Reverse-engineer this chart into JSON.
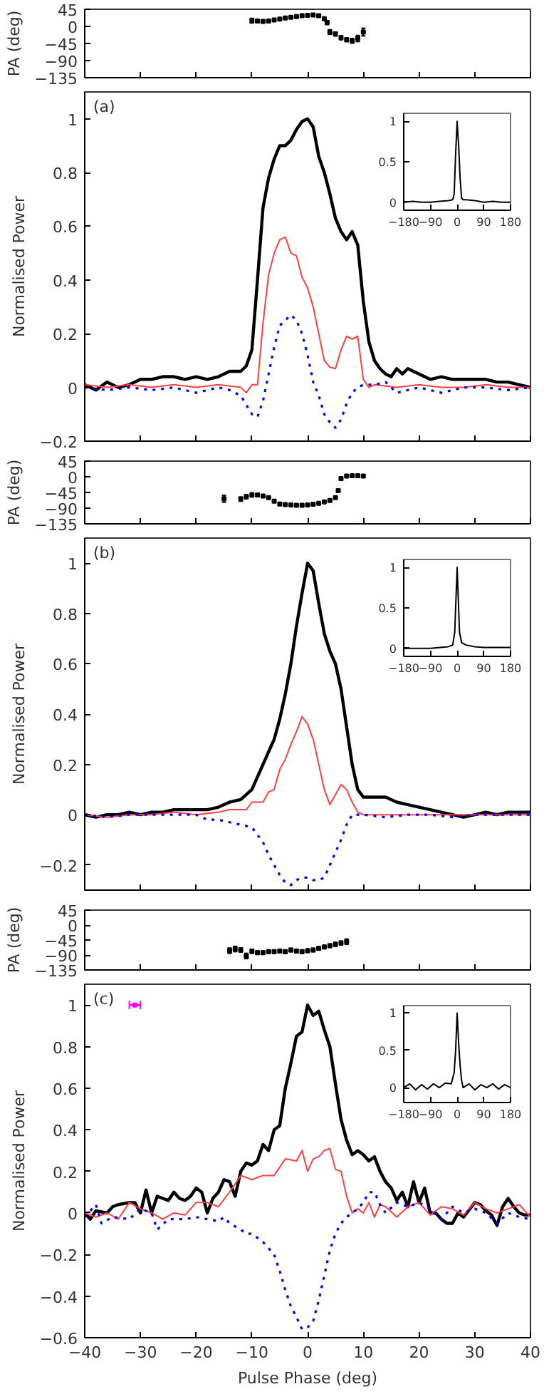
{
  "chart_data": [
    {
      "type": "scatter",
      "ylabel": "PA (deg)",
      "xlim": [
        -40,
        40
      ],
      "xticks": [
        -40,
        -30,
        -20,
        -10,
        0,
        10,
        20,
        30,
        40
      ],
      "ylim": [
        -135,
        45
      ],
      "yticks": [
        -135,
        -90,
        -45,
        0,
        45
      ],
      "tick_labels": "y",
      "marker": "square",
      "grid": false,
      "series": [
        {
          "color": "#000000",
          "x": [
            -10,
            -9,
            -8,
            -7,
            -6,
            -5,
            -4,
            -3,
            -2,
            -1,
            0,
            1,
            2,
            3,
            3.5,
            4,
            5,
            6,
            7,
            8,
            9,
            10
          ],
          "values": [
            15,
            14,
            13,
            14,
            17,
            19,
            22,
            24,
            26,
            28,
            29,
            30,
            28,
            20,
            10,
            -15,
            -20,
            -30,
            -35,
            -38,
            -32,
            -15
          ],
          "errors": [
            6,
            4,
            4,
            3,
            3,
            3,
            3,
            3,
            3,
            3,
            3,
            3,
            3,
            4,
            5,
            6,
            5,
            5,
            5,
            6,
            8,
            10
          ]
        }
      ]
    },
    {
      "type": "line",
      "ylabel": "Normalised Power",
      "annotations": [
        "(a)"
      ],
      "xlim": [
        -40,
        40
      ],
      "xticks": [
        -40,
        -30,
        -20,
        -10,
        0,
        10,
        20,
        30,
        40
      ],
      "ylim": [
        -0.2,
        1.1
      ],
      "yticks": [
        -0.2,
        0,
        0.2,
        0.4,
        0.6,
        0.8,
        1
      ],
      "tick_labels": "y",
      "line_style": "solid",
      "grid": false,
      "series": [
        {
          "color": "#000000",
          "x": [
            -40,
            -38,
            -36,
            -34,
            -32,
            -30,
            -28,
            -26,
            -24,
            -22,
            -20,
            -18,
            -16,
            -14,
            -12,
            -11,
            -10,
            -9,
            -8,
            -7,
            -6,
            -5,
            -4,
            -3,
            -2,
            -1,
            0,
            1,
            2,
            3,
            4,
            5,
            6,
            7,
            8,
            9,
            10,
            11,
            12,
            13,
            14,
            15,
            16,
            17,
            18,
            19,
            20,
            22,
            24,
            26,
            28,
            30,
            32,
            34,
            36,
            38,
            40
          ],
          "values": [
            0.01,
            -0.01,
            0.02,
            0,
            0.01,
            0.03,
            0.03,
            0.04,
            0.04,
            0.03,
            0.04,
            0.03,
            0.04,
            0.06,
            0.06,
            0.08,
            0.14,
            0.4,
            0.67,
            0.78,
            0.85,
            0.9,
            0.9,
            0.92,
            0.96,
            0.99,
            1,
            0.97,
            0.86,
            0.8,
            0.72,
            0.63,
            0.58,
            0.55,
            0.58,
            0.53,
            0.32,
            0.17,
            0.1,
            0.07,
            0.05,
            0.04,
            0.07,
            0.05,
            0.07,
            0.06,
            0.05,
            0.03,
            0.04,
            0.03,
            0.03,
            0.03,
            0.03,
            0.02,
            0.02,
            0.01,
            0
          ]
        },
        {
          "color": "#ff4040",
          "x": [
            -40,
            -36,
            -32,
            -28,
            -24,
            -20,
            -16,
            -12,
            -11,
            -10,
            -9,
            -8,
            -7,
            -6,
            -5,
            -4,
            -3,
            -2,
            -1,
            0,
            1,
            2,
            3,
            4,
            5,
            6,
            7,
            8,
            9,
            10,
            11,
            12,
            16,
            20,
            24,
            28,
            32,
            36,
            40
          ],
          "values": [
            0.01,
            0,
            0.01,
            0,
            0.01,
            0,
            0.01,
            0,
            -0.02,
            0.01,
            0.01,
            0.24,
            0.42,
            0.5,
            0.55,
            0.56,
            0.5,
            0.49,
            0.41,
            0.37,
            0.3,
            0.2,
            0.1,
            0.075,
            0.07,
            0.14,
            0.19,
            0.18,
            0.19,
            0.03,
            0,
            0.01,
            0,
            0.01,
            0,
            0,
            0.01,
            0,
            0
          ]
        },
        {
          "color": "#0000ff",
          "line_style": "dotted",
          "x": [
            -40,
            -36,
            -32,
            -28,
            -24,
            -20,
            -16,
            -14,
            -12,
            -10,
            -9,
            -8,
            -7,
            -6,
            -5,
            -4,
            -3,
            -2,
            -1,
            0,
            1,
            2,
            3,
            4,
            5,
            6,
            7,
            8,
            9,
            10,
            12,
            14,
            16,
            20,
            24,
            28,
            32,
            36,
            40
          ],
          "values": [
            0,
            -0.01,
            0,
            -0.01,
            0,
            -0.02,
            0,
            -0.01,
            -0.03,
            -0.1,
            -0.11,
            -0.05,
            0.05,
            0.15,
            0.23,
            0.25,
            0.27,
            0.25,
            0.2,
            0.12,
            0.02,
            -0.03,
            -0.1,
            -0.13,
            -0.15,
            -0.12,
            -0.06,
            -0.02,
            0,
            0.01,
            0.01,
            0.02,
            -0.02,
            0,
            -0.02,
            0,
            0,
            -0.01,
            0
          ]
        }
      ]
    },
    {
      "type": "line",
      "xlim": [
        -180,
        180
      ],
      "xticks": [
        -180,
        -90,
        0,
        90,
        180
      ],
      "ylim": [
        -0.1,
        1.1
      ],
      "yticks": [
        0,
        0.5,
        1
      ],
      "grid": false,
      "series": [
        {
          "color": "#000000",
          "x": [
            -180,
            -150,
            -120,
            -90,
            -60,
            -30,
            -15,
            -10,
            -5,
            0,
            5,
            10,
            15,
            20,
            30,
            60,
            90,
            120,
            150,
            180
          ],
          "values": [
            0,
            0.01,
            0,
            0,
            0.01,
            0.02,
            0.03,
            0.1,
            0.6,
            1,
            0.7,
            0.3,
            0.05,
            0.03,
            0.03,
            0.02,
            0,
            0.01,
            0,
            0
          ]
        }
      ]
    },
    {
      "type": "scatter",
      "ylabel": "PA (deg)",
      "xlim": [
        -40,
        40
      ],
      "xticks": [
        -40,
        -30,
        -20,
        -10,
        0,
        10,
        20,
        30,
        40
      ],
      "ylim": [
        -135,
        45
      ],
      "yticks": [
        -135,
        -90,
        -45,
        0,
        45
      ],
      "tick_labels": "y",
      "marker": "square",
      "grid": false,
      "series": [
        {
          "color": "#000000",
          "x": [
            -15,
            -12,
            -11,
            -10,
            -9,
            -8,
            -7,
            -6,
            -5,
            -4,
            -3,
            -2,
            -1,
            0,
            1,
            2,
            3,
            4,
            5,
            5.5,
            6,
            7,
            8,
            9,
            10
          ],
          "values": [
            -63,
            -64,
            -57,
            -52,
            -52,
            -55,
            -60,
            -70,
            -78,
            -80,
            -81,
            -82,
            -82,
            -81,
            -79,
            -76,
            -72,
            -68,
            -60,
            -40,
            -5,
            2,
            3,
            3,
            2
          ],
          "errors": [
            10,
            6,
            6,
            6,
            4,
            4,
            3,
            3,
            3,
            3,
            2,
            2,
            2,
            2,
            2,
            2,
            3,
            3,
            4,
            4,
            4,
            3,
            3,
            3,
            4
          ]
        }
      ]
    },
    {
      "type": "line",
      "ylabel": "Normalised Power",
      "annotations": [
        "(b)"
      ],
      "xlim": [
        -40,
        40
      ],
      "xticks": [
        -40,
        -30,
        -20,
        -10,
        0,
        10,
        20,
        30,
        40
      ],
      "ylim": [
        -0.3,
        1.1
      ],
      "yticks": [
        -0.2,
        0,
        0.2,
        0.4,
        0.6,
        0.8,
        1
      ],
      "tick_labels": "y",
      "line_style": "solid",
      "grid": false,
      "series": [
        {
          "color": "#000000",
          "x": [
            -40,
            -38,
            -36,
            -34,
            -32,
            -30,
            -28,
            -26,
            -24,
            -22,
            -20,
            -18,
            -16,
            -14,
            -12,
            -10,
            -9,
            -8,
            -7,
            -6,
            -5,
            -4,
            -3,
            -2,
            -1,
            0,
            1,
            2,
            3,
            4,
            5,
            6,
            7,
            8,
            9,
            10,
            12,
            14,
            16,
            18,
            20,
            22,
            24,
            26,
            28,
            30,
            32,
            34,
            36,
            38,
            40
          ],
          "values": [
            0,
            -0.01,
            0,
            0,
            0.01,
            0,
            0.01,
            0.01,
            0.02,
            0.02,
            0.02,
            0.02,
            0.03,
            0.05,
            0.06,
            0.1,
            0.15,
            0.2,
            0.25,
            0.3,
            0.38,
            0.48,
            0.6,
            0.75,
            0.88,
            1,
            0.97,
            0.84,
            0.72,
            0.65,
            0.6,
            0.5,
            0.35,
            0.2,
            0.1,
            0.07,
            0.07,
            0.07,
            0.05,
            0.04,
            0.03,
            0.02,
            0.01,
            0,
            -0.01,
            0,
            0.01,
            0,
            0.01,
            0.01,
            0.01
          ]
        },
        {
          "color": "#ff4040",
          "x": [
            -40,
            -36,
            -32,
            -28,
            -24,
            -20,
            -16,
            -14,
            -12,
            -11,
            -10,
            -8,
            -7,
            -6,
            -5,
            -4,
            -3,
            -2,
            -1,
            0,
            1,
            2,
            3,
            4,
            5,
            6,
            7,
            8,
            9,
            10,
            14,
            18,
            22,
            26,
            30,
            34,
            38,
            40
          ],
          "values": [
            0,
            -0.01,
            0,
            0,
            0.01,
            0,
            0.01,
            0.02,
            0.02,
            0.02,
            0.05,
            0.05,
            0.09,
            0.1,
            0.18,
            0.22,
            0.28,
            0.33,
            0.39,
            0.36,
            0.3,
            0.2,
            0.1,
            0.04,
            0.08,
            0.12,
            0.1,
            0.05,
            0.01,
            0,
            0,
            0,
            0,
            0,
            0,
            0,
            0,
            0
          ]
        },
        {
          "color": "#0000ff",
          "line_style": "dotted",
          "x": [
            -40,
            -36,
            -32,
            -28,
            -24,
            -20,
            -18,
            -16,
            -14,
            -12,
            -10,
            -9,
            -8,
            -7,
            -6,
            -5,
            -4,
            -3,
            -2,
            -1,
            0,
            1,
            2,
            3,
            4,
            5,
            6,
            7,
            8,
            10,
            14,
            18,
            22,
            26,
            30,
            34,
            38,
            40
          ],
          "values": [
            0,
            -0.01,
            0,
            0,
            0,
            0,
            -0.02,
            -0.02,
            -0.03,
            -0.04,
            -0.05,
            -0.08,
            -0.11,
            -0.16,
            -0.2,
            -0.24,
            -0.27,
            -0.28,
            -0.26,
            -0.25,
            -0.25,
            -0.26,
            -0.26,
            -0.25,
            -0.2,
            -0.15,
            -0.1,
            -0.04,
            0,
            0,
            -0.01,
            0,
            0,
            -0.01,
            0,
            0,
            0,
            0
          ]
        }
      ]
    },
    {
      "type": "line",
      "xlim": [
        -180,
        180
      ],
      "xticks": [
        -180,
        -90,
        0,
        90,
        180
      ],
      "ylim": [
        -0.1,
        1.1
      ],
      "yticks": [
        0,
        0.5,
        1
      ],
      "grid": false,
      "series": [
        {
          "color": "#000000",
          "x": [
            -180,
            -90,
            -30,
            -15,
            -8,
            -4,
            0,
            4,
            8,
            15,
            30,
            60,
            90,
            180
          ],
          "values": [
            0,
            0,
            0.02,
            0.04,
            0.2,
            0.6,
            1,
            0.6,
            0.2,
            0.07,
            0.04,
            0.02,
            0.01,
            0.01
          ]
        }
      ]
    },
    {
      "type": "scatter",
      "ylabel": "PA (deg)",
      "xlim": [
        -40,
        40
      ],
      "xticks": [
        -40,
        -30,
        -20,
        -10,
        0,
        10,
        20,
        30,
        40
      ],
      "ylim": [
        -135,
        45
      ],
      "yticks": [
        -135,
        -90,
        -45,
        0,
        45
      ],
      "tick_labels": "y",
      "marker": "square",
      "grid": false,
      "series": [
        {
          "color": "#000000",
          "x": [
            -14,
            -13,
            -12,
            -11,
            -10,
            -9,
            -8,
            -7,
            -6,
            -5,
            -4,
            -3,
            -2,
            -1,
            0,
            1,
            2,
            3,
            4,
            5,
            6,
            7
          ],
          "values": [
            -77,
            -72,
            -75,
            -93,
            -79,
            -83,
            -83,
            -80,
            -80,
            -78,
            -80,
            -75,
            -78,
            -80,
            -77,
            -75,
            -70,
            -66,
            -62,
            -58,
            -54,
            -50
          ],
          "errors": [
            8,
            8,
            6,
            8,
            6,
            5,
            5,
            5,
            5,
            5,
            5,
            5,
            5,
            5,
            5,
            5,
            5,
            5,
            5,
            6,
            6,
            8
          ]
        }
      ]
    },
    {
      "type": "line",
      "ylabel": "Normalised Power",
      "xlabel": "Pulse Phase (deg)",
      "annotations": [
        "(c)"
      ],
      "xlim": [
        -40,
        40
      ],
      "xticks": [
        -40,
        -30,
        -20,
        -10,
        0,
        10,
        20,
        30,
        40
      ],
      "ylim": [
        -0.6,
        1.1
      ],
      "yticks": [
        -0.6,
        -0.4,
        -0.2,
        0,
        0.2,
        0.4,
        0.6,
        0.8,
        1
      ],
      "line_style": "solid",
      "grid": false,
      "series": [
        {
          "color": "#000000",
          "x": [
            -40,
            -39,
            -38,
            -36,
            -35,
            -34,
            -32,
            -31,
            -30,
            -29,
            -28,
            -27,
            -26,
            -25,
            -24,
            -23,
            -22,
            -21,
            -20,
            -19,
            -18,
            -17,
            -16,
            -15,
            -14,
            -13,
            -12,
            -11,
            -10,
            -9,
            -8,
            -7,
            -6,
            -5,
            -4,
            -3,
            -2,
            -1,
            0,
            1,
            2,
            3,
            4,
            5,
            6,
            7,
            8,
            9,
            10,
            11,
            12,
            13,
            14,
            15,
            16,
            17,
            18,
            19,
            20,
            21,
            22,
            23,
            24,
            25,
            26,
            27,
            28,
            30,
            31,
            32,
            33,
            34,
            35,
            36,
            37,
            38,
            39,
            40
          ],
          "values": [
            0,
            -0.03,
            0.01,
            0,
            0.03,
            0.04,
            0.05,
            0.05,
            0,
            0.11,
            0,
            0.08,
            0.07,
            0.06,
            0.1,
            0.07,
            0.06,
            0.08,
            0.12,
            0.1,
            0,
            0.07,
            0.1,
            0.16,
            0.15,
            0.08,
            0.2,
            0.24,
            0.23,
            0.25,
            0.33,
            0.3,
            0.4,
            0.42,
            0.6,
            0.72,
            0.85,
            0.87,
            1,
            0.95,
            0.97,
            0.88,
            0.8,
            0.62,
            0.45,
            0.35,
            0.28,
            0.3,
            0.28,
            0.25,
            0.27,
            0.2,
            0.15,
            0.12,
            0.06,
            0.1,
            0.03,
            0.15,
            0.05,
            0.12,
            0,
            0,
            -0.03,
            -0.05,
            -0.05,
            0,
            -0.02,
            0.05,
            0.04,
            0.01,
            -0.01,
            -0.06,
            0.03,
            0.07,
            0.03,
            0,
            -0.01,
            -0.01
          ]
        },
        {
          "color": "#ff4040",
          "x": [
            -40,
            -38,
            -36,
            -34,
            -32,
            -30,
            -28,
            -26,
            -24,
            -22,
            -20,
            -18,
            -16,
            -14,
            -12,
            -10,
            -8,
            -6,
            -4,
            -2,
            -1,
            0,
            1,
            2,
            3,
            4,
            5,
            6,
            7,
            8,
            9,
            10,
            11,
            12,
            13,
            14,
            16,
            18,
            20,
            22,
            24,
            26,
            28,
            30,
            32,
            34,
            36,
            38,
            40
          ],
          "values": [
            0,
            -0.02,
            0,
            -0.03,
            0.05,
            0.02,
            0,
            -0.03,
            0,
            -0.01,
            0.05,
            0.05,
            0.03,
            0.1,
            0.18,
            0.16,
            0.18,
            0.18,
            0.26,
            0.25,
            0.3,
            0.2,
            0.26,
            0.27,
            0.3,
            0.31,
            0.21,
            0.2,
            0.08,
            0,
            0.02,
            0,
            0.05,
            -0.02,
            0.04,
            0.03,
            -0.02,
            0.03,
            0.05,
            -0.01,
            0.03,
            0.02,
            -0.01,
            0.05,
            0.02,
            0,
            0.02,
            0.04,
            -0.02
          ]
        },
        {
          "color": "#0000ff",
          "line_style": "dotted",
          "x": [
            -40,
            -38,
            -37,
            -35,
            -32,
            -30,
            -28,
            -27,
            -25,
            -22,
            -20,
            -18,
            -16,
            -15,
            -14,
            -12,
            -11,
            -10,
            -8,
            -6,
            -5,
            -4,
            -3,
            -2,
            -1,
            0,
            1,
            2,
            3,
            4,
            5,
            6,
            7,
            9,
            10,
            11,
            12,
            13,
            14,
            16,
            18,
            20,
            22,
            24,
            26,
            28,
            30,
            32,
            34,
            36,
            38,
            40
          ],
          "values": [
            -0.02,
            0.04,
            -0.05,
            -0.02,
            -0.03,
            0.02,
            0,
            -0.08,
            -0.03,
            -0.03,
            -0.02,
            -0.03,
            -0.04,
            -0.02,
            -0.05,
            -0.08,
            -0.1,
            -0.1,
            -0.14,
            -0.2,
            -0.28,
            -0.37,
            -0.45,
            -0.5,
            -0.56,
            -0.55,
            -0.52,
            -0.42,
            -0.3,
            -0.18,
            -0.1,
            -0.05,
            -0.02,
            0.02,
            0.05,
            0.1,
            0.1,
            0.04,
            0,
            0.05,
            0.03,
            0.05,
            0.02,
            -0.03,
            0.03,
            0,
            0.02,
            0,
            -0.05,
            0,
            -0.02,
            -0.03
          ]
        },
        {
          "type": "scatter",
          "color": "#ff00ff",
          "marker": "square",
          "x": [
            -31
          ],
          "values": [
            1
          ],
          "xerrors": [
            1
          ]
        }
      ]
    },
    {
      "type": "line",
      "xlim": [
        -180,
        180
      ],
      "xticks": [
        -180,
        -90,
        0,
        90,
        180
      ],
      "ylim": [
        -0.2,
        1.1
      ],
      "yticks": [
        0,
        0.5,
        1
      ],
      "grid": false,
      "series": [
        {
          "color": "#000000",
          "x": [
            -180,
            -160,
            -140,
            -120,
            -100,
            -80,
            -60,
            -40,
            -20,
            -10,
            -5,
            0,
            5,
            10,
            15,
            20,
            40,
            60,
            80,
            100,
            120,
            140,
            160,
            180
          ],
          "values": [
            0,
            0.05,
            -0.03,
            0.04,
            -0.02,
            0.05,
            0,
            0.06,
            0.05,
            0.2,
            0.5,
            1,
            0.6,
            0.3,
            0.1,
            0,
            0.05,
            -0.03,
            0.04,
            0,
            0.05,
            -0.02,
            0.04,
            0
          ]
        }
      ]
    }
  ]
}
